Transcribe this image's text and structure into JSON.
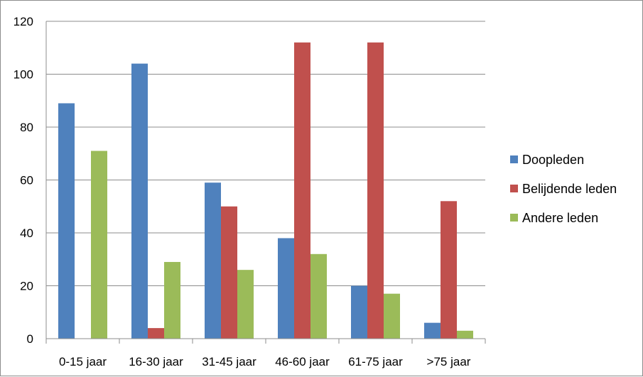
{
  "chart_data": {
    "type": "bar",
    "categories": [
      "0-15 jaar",
      "16-30 jaar",
      "31-45 jaar",
      "46-60 jaar",
      "61-75 jaar",
      ">75 jaar"
    ],
    "series": [
      {
        "name": "Doopleden",
        "values": [
          89,
          104,
          59,
          38,
          20,
          6
        ],
        "color": "#4f81bd"
      },
      {
        "name": "Belijdende leden",
        "values": [
          0,
          4,
          50,
          112,
          112,
          52
        ],
        "color": "#c0504d"
      },
      {
        "name": "Andere leden",
        "values": [
          71,
          29,
          26,
          32,
          17,
          3
        ],
        "color": "#9bbb59"
      }
    ],
    "ylim": [
      0,
      120
    ],
    "yticks": [
      0,
      20,
      40,
      60,
      80,
      100,
      120
    ],
    "grid": true,
    "legend_position": "right",
    "title": "",
    "xlabel": "",
    "ylabel": ""
  }
}
